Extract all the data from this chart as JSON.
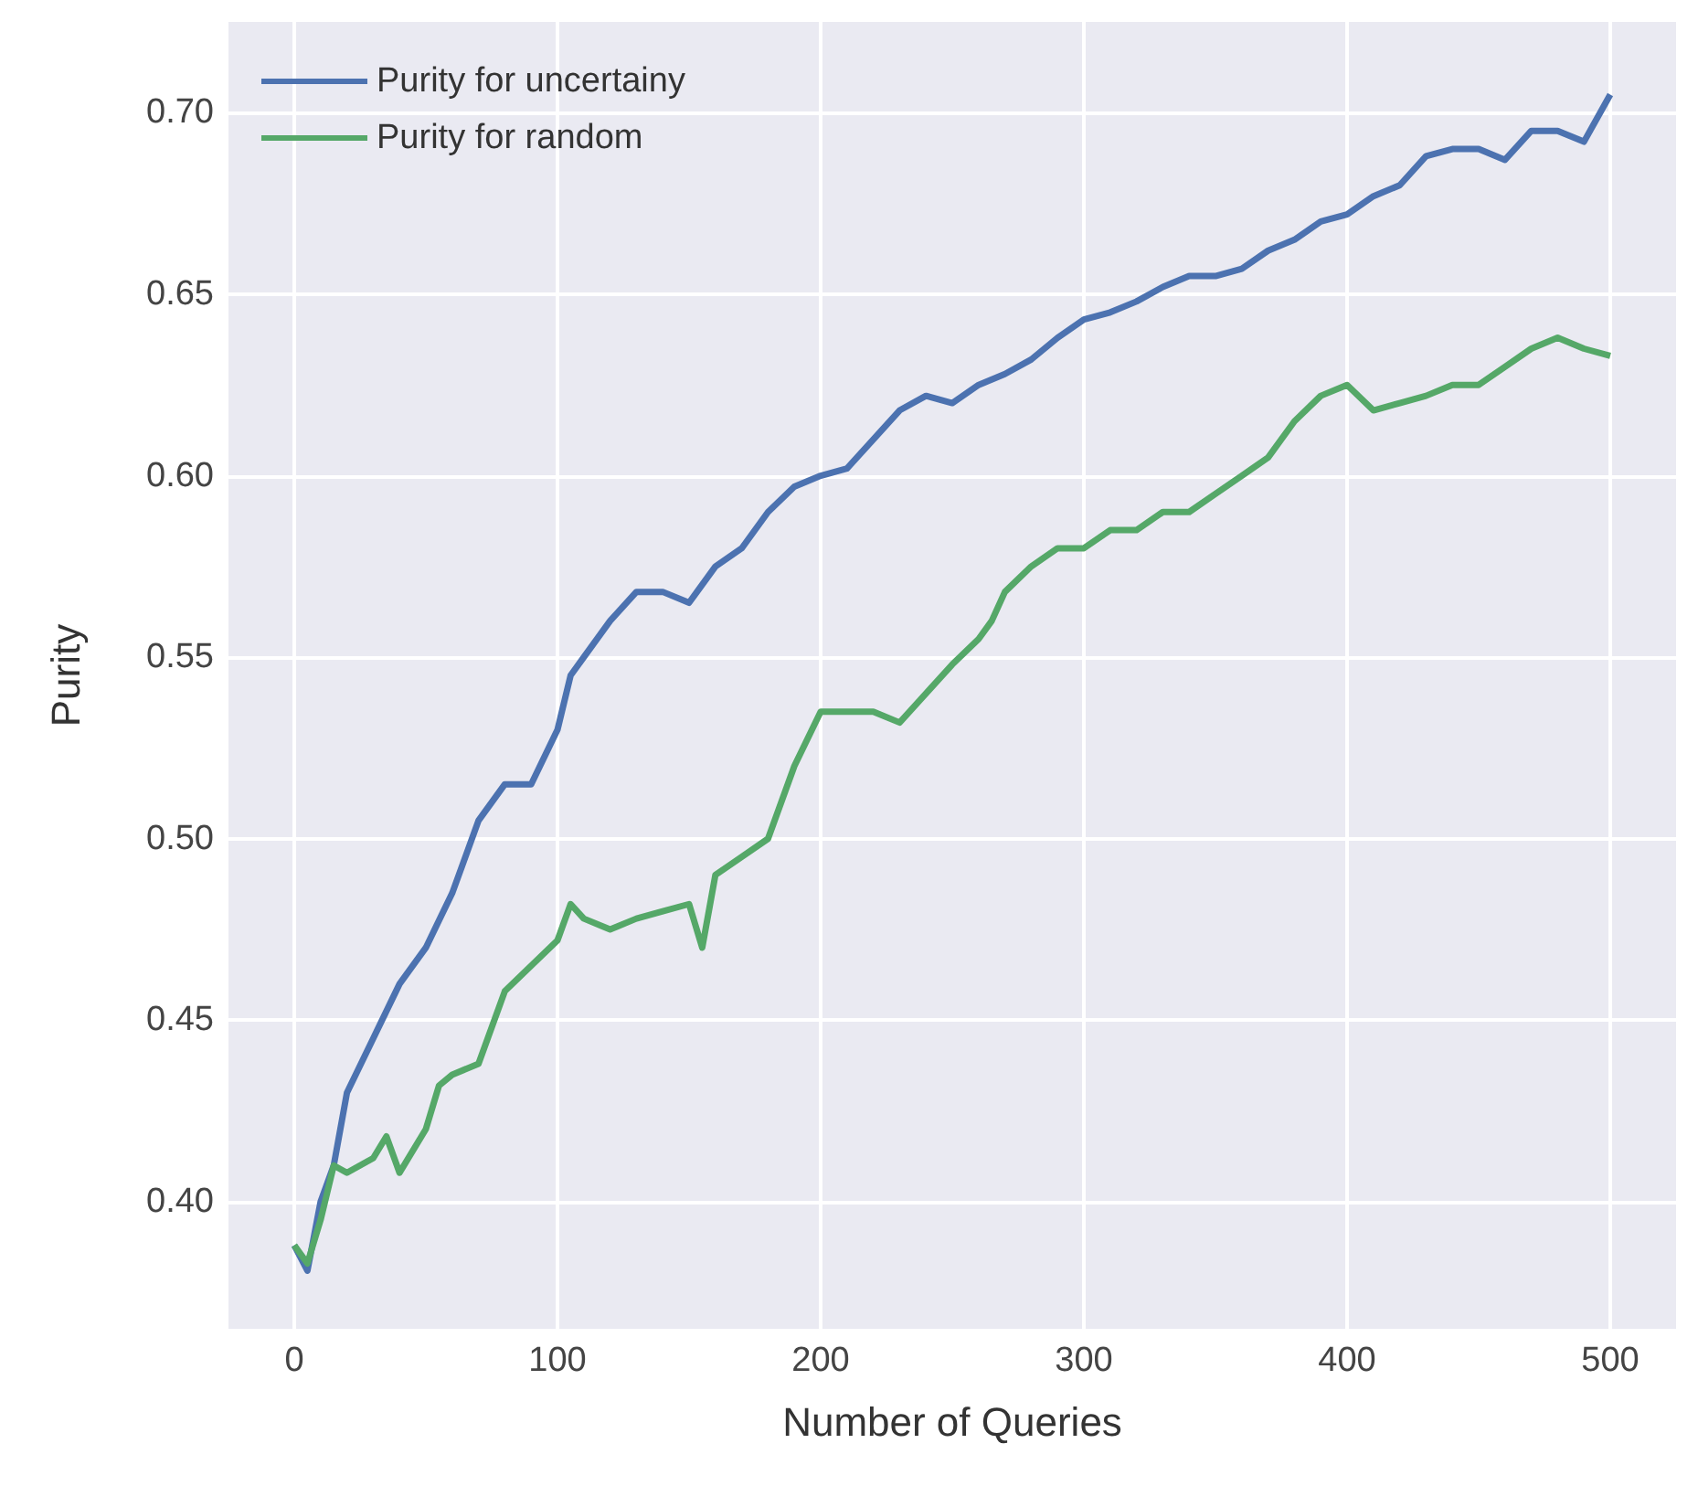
{
  "chart_data": {
    "type": "line",
    "xlabel": "Number of Queries",
    "ylabel": "Purity",
    "xlim": [
      -25,
      525
    ],
    "xticks": [
      0,
      100,
      200,
      300,
      400,
      500
    ],
    "ylim": [
      0.365,
      0.725
    ],
    "yticks": [
      {
        "value": 0.4,
        "label": "0.40"
      },
      {
        "value": 0.45,
        "label": "0.45"
      },
      {
        "value": 0.5,
        "label": "0.50"
      },
      {
        "value": 0.55,
        "label": "0.55"
      },
      {
        "value": 0.6,
        "label": "0.60"
      },
      {
        "value": 0.65,
        "label": "0.65"
      },
      {
        "value": 0.7,
        "label": "0.70"
      }
    ],
    "grid": true,
    "legend": "top left",
    "series": [
      {
        "name": "Purity for uncertainy",
        "color": "#4c72b0",
        "x": [
          0,
          5,
          10,
          15,
          20,
          30,
          40,
          50,
          60,
          70,
          80,
          90,
          100,
          105,
          110,
          120,
          130,
          140,
          150,
          160,
          170,
          180,
          190,
          200,
          210,
          220,
          230,
          240,
          250,
          260,
          270,
          280,
          290,
          300,
          310,
          320,
          330,
          340,
          350,
          360,
          370,
          380,
          390,
          400,
          410,
          420,
          430,
          440,
          450,
          460,
          470,
          480,
          490,
          500
        ],
        "values": [
          0.388,
          0.381,
          0.4,
          0.41,
          0.43,
          0.445,
          0.46,
          0.47,
          0.485,
          0.505,
          0.515,
          0.515,
          0.53,
          0.545,
          0.55,
          0.56,
          0.568,
          0.568,
          0.565,
          0.575,
          0.58,
          0.59,
          0.597,
          0.6,
          0.602,
          0.61,
          0.618,
          0.622,
          0.62,
          0.625,
          0.628,
          0.632,
          0.638,
          0.643,
          0.645,
          0.648,
          0.652,
          0.655,
          0.655,
          0.657,
          0.662,
          0.665,
          0.67,
          0.672,
          0.677,
          0.68,
          0.688,
          0.69,
          0.69,
          0.687,
          0.695,
          0.695,
          0.692,
          0.705
        ]
      },
      {
        "name": "Purity for random",
        "color": "#55a868",
        "x": [
          0,
          5,
          10,
          15,
          20,
          30,
          35,
          40,
          50,
          55,
          60,
          70,
          80,
          90,
          100,
          105,
          110,
          120,
          130,
          140,
          150,
          155,
          160,
          170,
          180,
          190,
          200,
          210,
          220,
          230,
          240,
          250,
          260,
          265,
          270,
          280,
          290,
          300,
          310,
          320,
          330,
          340,
          350,
          360,
          370,
          380,
          390,
          400,
          410,
          420,
          430,
          440,
          450,
          460,
          470,
          480,
          490,
          500
        ],
        "values": [
          0.388,
          0.383,
          0.395,
          0.41,
          0.408,
          0.412,
          0.418,
          0.408,
          0.42,
          0.432,
          0.435,
          0.438,
          0.458,
          0.465,
          0.472,
          0.482,
          0.478,
          0.475,
          0.478,
          0.48,
          0.482,
          0.47,
          0.49,
          0.495,
          0.5,
          0.52,
          0.535,
          0.535,
          0.535,
          0.532,
          0.54,
          0.548,
          0.555,
          0.56,
          0.568,
          0.575,
          0.58,
          0.58,
          0.585,
          0.585,
          0.59,
          0.59,
          0.595,
          0.6,
          0.605,
          0.615,
          0.622,
          0.625,
          0.618,
          0.62,
          0.622,
          0.625,
          0.625,
          0.63,
          0.635,
          0.638,
          0.635,
          0.633
        ]
      }
    ]
  }
}
